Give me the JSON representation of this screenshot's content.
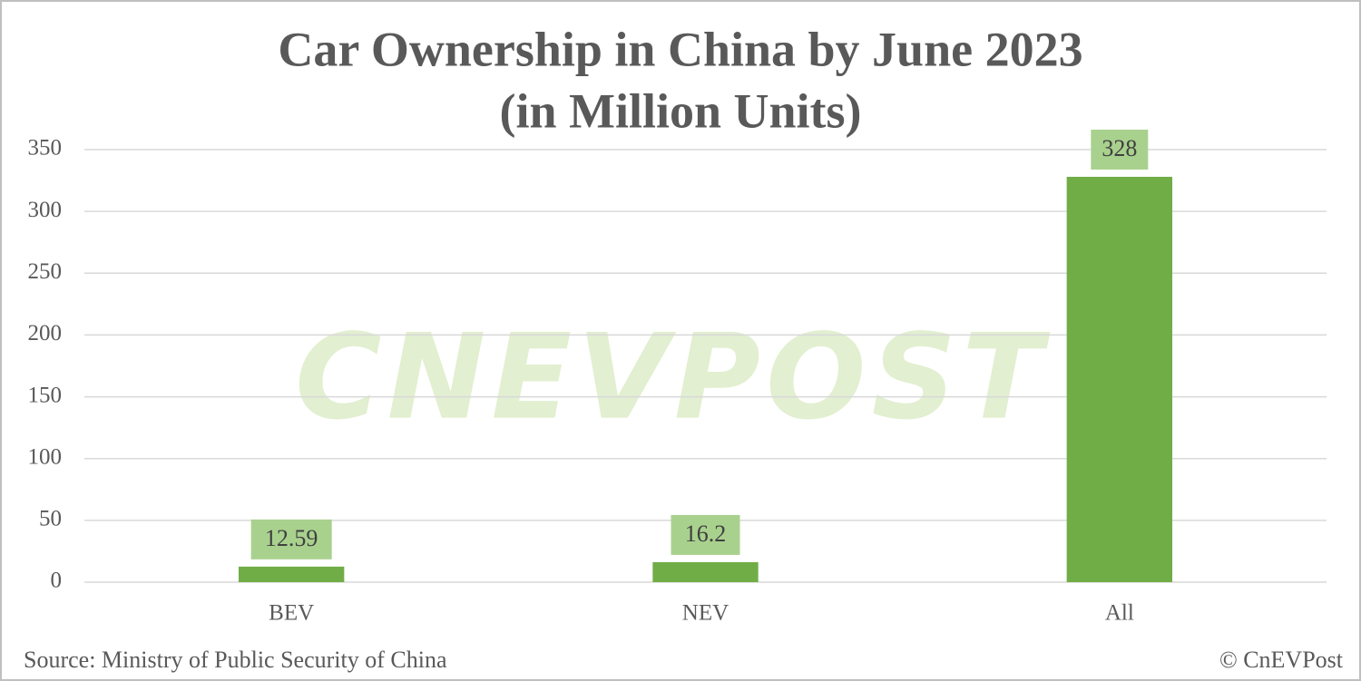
{
  "chart_data": {
    "type": "bar",
    "title": "Car Ownership in China by June 2023",
    "subtitle": "(in Million Units)",
    "categories": [
      "BEV",
      "NEV",
      "All"
    ],
    "values": [
      12.59,
      16.2,
      328
    ],
    "color": "#70ad47",
    "label_color": "#a9d18e",
    "ylim": [
      0,
      350
    ],
    "yticks": [
      0,
      50,
      100,
      150,
      200,
      250,
      300,
      350
    ],
    "grid": true,
    "watermark": "CNEVPOST",
    "source": "Source: Ministry of Public Security of China",
    "credit": "© CnEVPost"
  }
}
